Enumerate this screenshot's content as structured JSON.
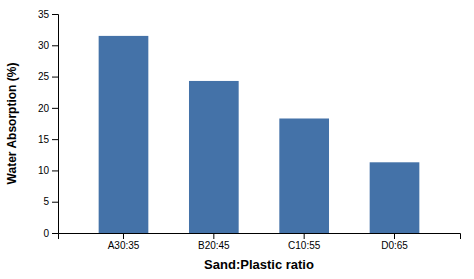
{
  "chart_data": {
    "type": "bar",
    "categories": [
      "A30:35",
      "B20:45",
      "C10:55",
      "D0:65"
    ],
    "values": [
      31.5,
      24.3,
      18.3,
      11.3
    ],
    "color": "#4472a8",
    "xlabel": "Sand:Plastic ratio",
    "ylabel": "Water Absorption (%)",
    "ylim": [
      0,
      35
    ],
    "yticks": [
      0,
      5,
      10,
      15,
      20,
      25,
      30,
      35
    ],
    "grid": false
  }
}
